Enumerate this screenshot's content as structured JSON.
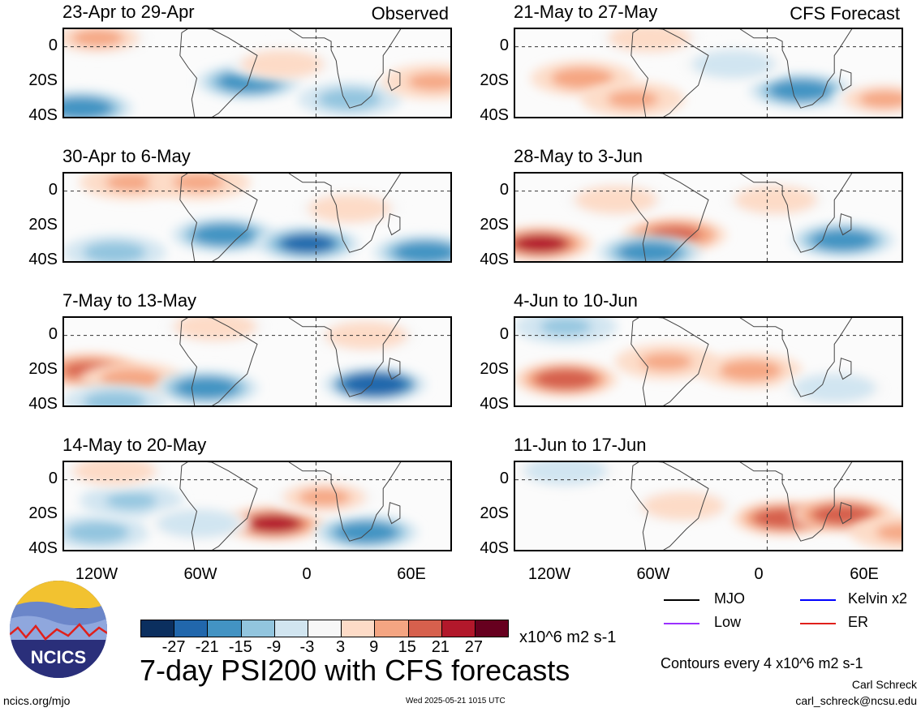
{
  "chart_data": {
    "type": "heatmap",
    "title": "7-day PSI200 with CFS forecasts",
    "units": "x10^6 m2 s-1",
    "colorbar": {
      "ticks": [
        "-27",
        "-21",
        "-15",
        "-9",
        "-3",
        "3",
        "9",
        "15",
        "21",
        "27"
      ],
      "colors": [
        "#0b2f5f",
        "#2167ac",
        "#4393c3",
        "#92c5de",
        "#d1e5f0",
        "#f7f7f7",
        "#fddbc7",
        "#f4a582",
        "#d6604d",
        "#b2182b",
        "#67001f"
      ]
    },
    "x_ticks": [
      "120W",
      "60W",
      "0",
      "60E"
    ],
    "y_ticks": [
      "0",
      "20S",
      "40S"
    ],
    "columns": [
      {
        "label": "Observed",
        "panels": [
          {
            "title": "23-Apr to 29-Apr",
            "blobs": [
              {
                "lon": -40,
                "lat": -20,
                "v": -18
              },
              {
                "lon": -140,
                "lat": -35,
                "v": -20
              },
              {
                "lon": 20,
                "lat": -30,
                "v": -15
              },
              {
                "lon": -130,
                "lat": 5,
                "v": 9
              },
              {
                "lon": 70,
                "lat": -20,
                "v": 10
              },
              {
                "lon": -20,
                "lat": -10,
                "v": 6
              }
            ]
          },
          {
            "title": "30-Apr to 6-May",
            "blobs": [
              {
                "lon": -55,
                "lat": -25,
                "v": -18
              },
              {
                "lon": -5,
                "lat": -30,
                "v": -24
              },
              {
                "lon": -120,
                "lat": -35,
                "v": -15
              },
              {
                "lon": 65,
                "lat": -35,
                "v": -18
              },
              {
                "lon": -110,
                "lat": 5,
                "v": 10
              },
              {
                "lon": -70,
                "lat": 5,
                "v": 10
              },
              {
                "lon": 20,
                "lat": -10,
                "v": 8
              }
            ]
          },
          {
            "title": "7-May to 13-May",
            "blobs": [
              {
                "lon": -135,
                "lat": -20,
                "v": 15
              },
              {
                "lon": -110,
                "lat": -25,
                "v": 12
              },
              {
                "lon": 35,
                "lat": -28,
                "v": -27
              },
              {
                "lon": -65,
                "lat": -30,
                "v": -18
              },
              {
                "lon": -120,
                "lat": -38,
                "v": -15
              },
              {
                "lon": -60,
                "lat": 5,
                "v": 8
              },
              {
                "lon": 30,
                "lat": 0,
                "v": 6
              }
            ]
          },
          {
            "title": "14-May to 20-May",
            "blobs": [
              {
                "lon": -25,
                "lat": -25,
                "v": 21
              },
              {
                "lon": -130,
                "lat": -30,
                "v": -15
              },
              {
                "lon": -110,
                "lat": -12,
                "v": -10
              },
              {
                "lon": 30,
                "lat": -30,
                "v": -18
              },
              {
                "lon": -70,
                "lat": -25,
                "v": -6
              },
              {
                "lon": 5,
                "lat": -10,
                "v": 9
              },
              {
                "lon": -120,
                "lat": 5,
                "v": 8
              }
            ]
          }
        ]
      },
      {
        "label": "CFS Forecast",
        "panels": [
          {
            "title": "21-May to 27-May",
            "blobs": [
              {
                "lon": -110,
                "lat": -18,
                "v": 14
              },
              {
                "lon": 20,
                "lat": -25,
                "v": -20
              },
              {
                "lon": -80,
                "lat": -30,
                "v": 10
              },
              {
                "lon": -20,
                "lat": -10,
                "v": -8
              },
              {
                "lon": 70,
                "lat": -30,
                "v": 9
              },
              {
                "lon": -70,
                "lat": 5,
                "v": 8
              }
            ]
          },
          {
            "title": "28-May to 3-Jun",
            "blobs": [
              {
                "lon": -135,
                "lat": -30,
                "v": 24
              },
              {
                "lon": -55,
                "lat": -25,
                "v": 15
              },
              {
                "lon": -70,
                "lat": -35,
                "v": -20
              },
              {
                "lon": 45,
                "lat": -28,
                "v": -18
              },
              {
                "lon": -90,
                "lat": -5,
                "v": 8
              },
              {
                "lon": 5,
                "lat": -5,
                "v": 6
              }
            ]
          },
          {
            "title": "4-Jun to 10-Jun",
            "blobs": [
              {
                "lon": -120,
                "lat": -25,
                "v": 20
              },
              {
                "lon": -10,
                "lat": -20,
                "v": 14
              },
              {
                "lon": -60,
                "lat": -15,
                "v": 10
              },
              {
                "lon": -120,
                "lat": 5,
                "v": -10
              },
              {
                "lon": 40,
                "lat": -30,
                "v": -8
              }
            ]
          },
          {
            "title": "11-Jun to 17-Jun",
            "blobs": [
              {
                "lon": 10,
                "lat": -22,
                "v": 18
              },
              {
                "lon": 45,
                "lat": -20,
                "v": 18
              },
              {
                "lon": -50,
                "lat": -15,
                "v": 8
              },
              {
                "lon": -120,
                "lat": 5,
                "v": -6
              },
              {
                "lon": 80,
                "lat": -30,
                "v": 10
              }
            ]
          }
        ]
      }
    ]
  },
  "legend": {
    "items": [
      {
        "label": "MJO",
        "color": "#000000"
      },
      {
        "label": "Kelvin x2",
        "color": "#0000ff"
      },
      {
        "label": "Low",
        "color": "#9b30ff"
      },
      {
        "label": "ER",
        "color": "#e0201b"
      }
    ],
    "contours_note": "Contours every 4 x10^6 m2 s-1"
  },
  "footer": {
    "logo_text": "NCICS",
    "url": "ncics.org/mjo",
    "timestamp": "Wed 2025-05-21 1015 UTC",
    "author": "Carl Schreck",
    "email": "carl_schreck@ncsu.edu"
  }
}
